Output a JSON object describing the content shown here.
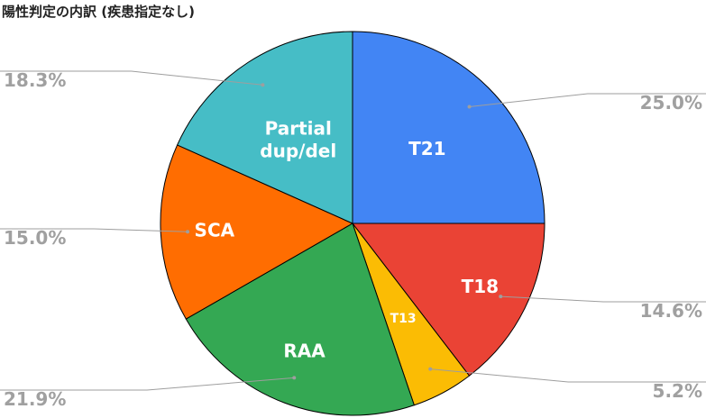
{
  "chart_data": {
    "type": "pie",
    "title": "陽性判定の内訳 (疾患指定なし)",
    "slices": [
      {
        "label": "T21",
        "value": 25.0,
        "value_label": "25.0%",
        "color": "#4285f4"
      },
      {
        "label": "T18",
        "value": 14.6,
        "value_label": "14.6%",
        "color": "#ea4335"
      },
      {
        "label": "T13",
        "value": 5.2,
        "value_label": "5.2%",
        "color": "#fbbc04"
      },
      {
        "label": "RAA",
        "value": 21.9,
        "value_label": "21.9%",
        "color": "#34a853"
      },
      {
        "label": "SCA",
        "value": 15.0,
        "value_label": "15.0%",
        "color": "#ff6d01"
      },
      {
        "label": "Partial dup/del",
        "value": 18.3,
        "value_label": "18.3%",
        "color": "#46bdc6"
      }
    ],
    "start_angle": "12 o'clock",
    "direction": "clockwise",
    "legend": "none",
    "labels": "category inside slice, percentage outside with leader line"
  }
}
